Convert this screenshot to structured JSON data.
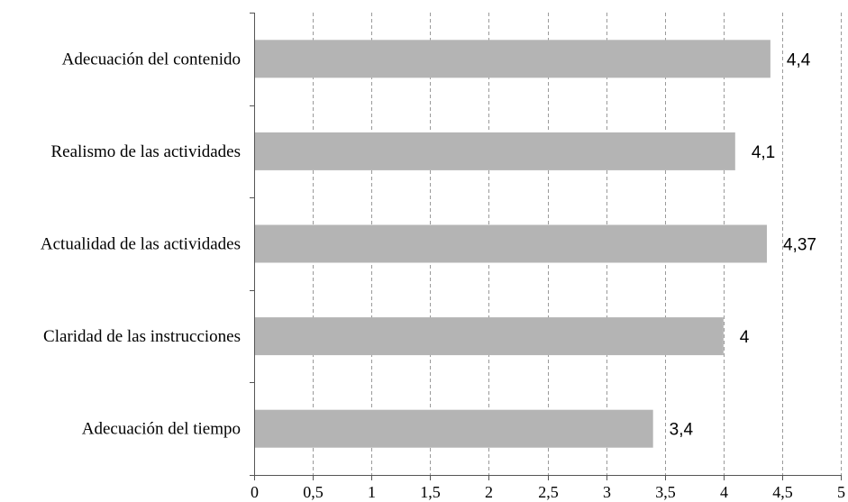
{
  "chart_data": {
    "type": "bar",
    "orientation": "horizontal",
    "categories": [
      "Adecuación del contenido",
      "Realismo de las actividades",
      "Actualidad de las actividades",
      "Claridad de las instrucciones",
      "Adecuación del tiempo"
    ],
    "values": [
      4.4,
      4.1,
      4.37,
      4,
      3.4
    ],
    "data_labels": [
      "4,4",
      "4,1",
      "4,37",
      "4",
      "3,4"
    ],
    "xlim": [
      0,
      5
    ],
    "x_ticks": [
      0,
      0.5,
      1,
      1.5,
      2,
      2.5,
      3,
      3.5,
      4,
      4.5,
      5
    ],
    "x_tick_labels": [
      "0",
      "0,5",
      "1",
      "1,5",
      "2",
      "2,5",
      "3",
      "3,5",
      "4",
      "4,5",
      "5"
    ],
    "grid": "vertical-dashed",
    "bar_color": "#b4b4b4",
    "title": "",
    "xlabel": "",
    "ylabel": ""
  }
}
